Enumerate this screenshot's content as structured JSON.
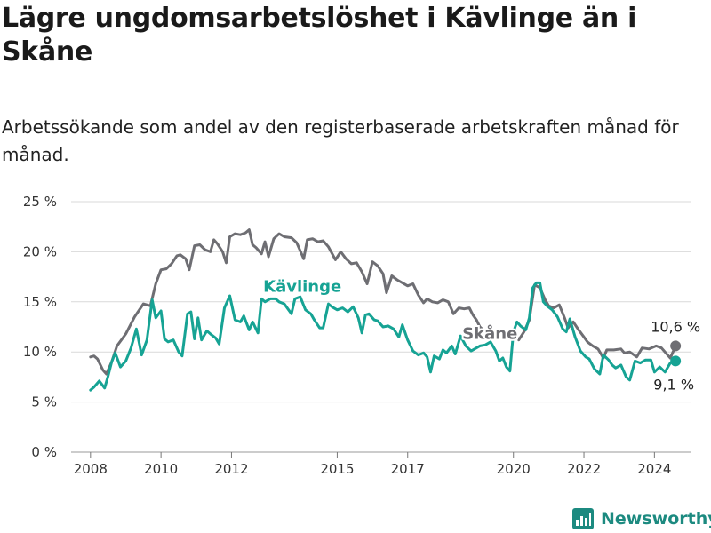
{
  "title": "Lägre ungdomsarbetslöshet i Kävlinge än i Skåne",
  "subtitle": "Arbetssökande som andel av den registerbaserade arbetskraften månad för månad.",
  "brand": "Newsworthy",
  "colors": {
    "kavlinge": "#16a394",
    "skane": "#6e6e73",
    "grid": "#d9d9d9",
    "axis": "#555555"
  },
  "chart_data": {
    "type": "line",
    "ylim": [
      0,
      25
    ],
    "y_ticks": [
      0,
      5,
      10,
      15,
      20,
      25
    ],
    "y_tick_labels": [
      "0 %",
      "5 %",
      "10 %",
      "15 %",
      "20 %",
      "25 %"
    ],
    "x_ticks": [
      2008,
      2010,
      2012,
      2015,
      2017,
      2020,
      2022,
      2024
    ],
    "x_tick_labels": [
      "2008",
      "2010",
      "2012",
      "2015",
      "2017",
      "2020",
      "2022",
      "2024"
    ],
    "series": [
      {
        "name": "Skåne",
        "color": "#6e6e73",
        "end_label": "10,6 %",
        "points": [
          [
            2008.0,
            9.5
          ],
          [
            2008.1,
            9.6
          ],
          [
            2008.2,
            9.3
          ],
          [
            2008.35,
            8.2
          ],
          [
            2008.45,
            7.8
          ],
          [
            2008.6,
            9.0
          ],
          [
            2008.75,
            10.6
          ],
          [
            2009.0,
            11.8
          ],
          [
            2009.25,
            13.5
          ],
          [
            2009.5,
            14.8
          ],
          [
            2009.7,
            14.6
          ],
          [
            2009.85,
            16.8
          ],
          [
            2010.0,
            18.2
          ],
          [
            2010.15,
            18.3
          ],
          [
            2010.3,
            18.8
          ],
          [
            2010.45,
            19.6
          ],
          [
            2010.55,
            19.7
          ],
          [
            2010.7,
            19.3
          ],
          [
            2010.8,
            18.2
          ],
          [
            2010.95,
            20.6
          ],
          [
            2011.1,
            20.7
          ],
          [
            2011.25,
            20.2
          ],
          [
            2011.4,
            20.0
          ],
          [
            2011.5,
            21.2
          ],
          [
            2011.6,
            20.8
          ],
          [
            2011.75,
            20.0
          ],
          [
            2011.85,
            18.9
          ],
          [
            2011.95,
            21.5
          ],
          [
            2012.1,
            21.8
          ],
          [
            2012.25,
            21.7
          ],
          [
            2012.4,
            21.9
          ],
          [
            2012.5,
            22.2
          ],
          [
            2012.6,
            20.7
          ],
          [
            2012.7,
            20.4
          ],
          [
            2012.85,
            19.8
          ],
          [
            2012.95,
            21.0
          ],
          [
            2013.05,
            19.5
          ],
          [
            2013.2,
            21.3
          ],
          [
            2013.35,
            21.8
          ],
          [
            2013.5,
            21.5
          ],
          [
            2013.7,
            21.4
          ],
          [
            2013.85,
            20.9
          ],
          [
            2014.05,
            19.3
          ],
          [
            2014.15,
            21.2
          ],
          [
            2014.3,
            21.3
          ],
          [
            2014.45,
            21.0
          ],
          [
            2014.6,
            21.1
          ],
          [
            2014.75,
            20.5
          ],
          [
            2014.95,
            19.2
          ],
          [
            2015.1,
            20.0
          ],
          [
            2015.25,
            19.3
          ],
          [
            2015.4,
            18.8
          ],
          [
            2015.55,
            18.9
          ],
          [
            2015.7,
            18.0
          ],
          [
            2015.85,
            16.8
          ],
          [
            2016.0,
            19.0
          ],
          [
            2016.15,
            18.6
          ],
          [
            2016.3,
            17.8
          ],
          [
            2016.4,
            15.9
          ],
          [
            2016.55,
            17.6
          ],
          [
            2016.7,
            17.2
          ],
          [
            2016.85,
            16.9
          ],
          [
            2017.0,
            16.6
          ],
          [
            2017.15,
            16.8
          ],
          [
            2017.3,
            15.7
          ],
          [
            2017.45,
            14.9
          ],
          [
            2017.55,
            15.3
          ],
          [
            2017.7,
            15.0
          ],
          [
            2017.85,
            14.9
          ],
          [
            2018.0,
            15.2
          ],
          [
            2018.15,
            15.0
          ],
          [
            2018.3,
            13.8
          ],
          [
            2018.45,
            14.4
          ],
          [
            2018.6,
            14.3
          ],
          [
            2018.75,
            14.4
          ],
          [
            2018.85,
            13.7
          ],
          [
            2018.95,
            13.2
          ],
          [
            2019.05,
            12.5
          ],
          [
            2019.2,
            12.0
          ],
          [
            2019.35,
            11.7
          ],
          [
            2019.5,
            11.4
          ],
          [
            2019.65,
            11.9
          ],
          [
            2019.8,
            11.6
          ],
          [
            2019.95,
            11.3
          ],
          [
            2020.05,
            11.7
          ],
          [
            2020.15,
            11.2
          ],
          [
            2020.3,
            12.0
          ],
          [
            2020.45,
            13.2
          ],
          [
            2020.6,
            16.7
          ],
          [
            2020.75,
            16.4
          ],
          [
            2020.9,
            15.2
          ],
          [
            2021.0,
            14.6
          ],
          [
            2021.15,
            14.4
          ],
          [
            2021.3,
            14.7
          ],
          [
            2021.45,
            13.4
          ],
          [
            2021.55,
            12.4
          ],
          [
            2021.7,
            13.0
          ],
          [
            2021.85,
            12.2
          ],
          [
            2022.0,
            11.5
          ],
          [
            2022.1,
            11.0
          ],
          [
            2022.25,
            10.6
          ],
          [
            2022.4,
            10.3
          ],
          [
            2022.55,
            9.4
          ],
          [
            2022.65,
            10.2
          ],
          [
            2022.85,
            10.2
          ],
          [
            2023.05,
            10.3
          ],
          [
            2023.15,
            9.9
          ],
          [
            2023.3,
            10.0
          ],
          [
            2023.5,
            9.5
          ],
          [
            2023.65,
            10.4
          ],
          [
            2023.85,
            10.3
          ],
          [
            2024.05,
            10.6
          ],
          [
            2024.2,
            10.4
          ],
          [
            2024.35,
            9.8
          ],
          [
            2024.45,
            9.4
          ],
          [
            2024.6,
            10.6
          ]
        ]
      },
      {
        "name": "Kävlinge",
        "color": "#16a394",
        "end_label": "9,1 %",
        "points": [
          [
            2008.0,
            6.2
          ],
          [
            2008.1,
            6.5
          ],
          [
            2008.25,
            7.1
          ],
          [
            2008.4,
            6.4
          ],
          [
            2008.5,
            7.6
          ],
          [
            2008.6,
            9.0
          ],
          [
            2008.7,
            9.9
          ],
          [
            2008.85,
            8.5
          ],
          [
            2009.0,
            9.1
          ],
          [
            2009.15,
            10.4
          ],
          [
            2009.3,
            12.3
          ],
          [
            2009.45,
            9.7
          ],
          [
            2009.6,
            11.2
          ],
          [
            2009.75,
            15.2
          ],
          [
            2009.85,
            13.4
          ],
          [
            2010.0,
            14.1
          ],
          [
            2010.1,
            11.3
          ],
          [
            2010.2,
            11.0
          ],
          [
            2010.35,
            11.2
          ],
          [
            2010.5,
            10.0
          ],
          [
            2010.6,
            9.6
          ],
          [
            2010.75,
            13.8
          ],
          [
            2010.85,
            14.0
          ],
          [
            2010.95,
            11.3
          ],
          [
            2011.05,
            13.4
          ],
          [
            2011.15,
            11.2
          ],
          [
            2011.3,
            12.1
          ],
          [
            2011.4,
            11.8
          ],
          [
            2011.55,
            11.4
          ],
          [
            2011.65,
            10.8
          ],
          [
            2011.8,
            14.4
          ],
          [
            2011.95,
            15.6
          ],
          [
            2012.1,
            13.2
          ],
          [
            2012.25,
            13.0
          ],
          [
            2012.35,
            13.6
          ],
          [
            2012.5,
            12.2
          ],
          [
            2012.6,
            13.0
          ],
          [
            2012.75,
            11.9
          ],
          [
            2012.85,
            15.3
          ],
          [
            2012.95,
            15.0
          ],
          [
            2013.1,
            15.3
          ],
          [
            2013.25,
            15.3
          ],
          [
            2013.35,
            15.0
          ],
          [
            2013.5,
            14.8
          ],
          [
            2013.6,
            14.3
          ],
          [
            2013.7,
            13.8
          ],
          [
            2013.8,
            15.3
          ],
          [
            2013.95,
            15.5
          ],
          [
            2014.1,
            14.2
          ],
          [
            2014.25,
            13.8
          ],
          [
            2014.35,
            13.2
          ],
          [
            2014.5,
            12.4
          ],
          [
            2014.6,
            12.4
          ],
          [
            2014.75,
            14.8
          ],
          [
            2014.85,
            14.5
          ],
          [
            2015.0,
            14.2
          ],
          [
            2015.15,
            14.4
          ],
          [
            2015.3,
            14.0
          ],
          [
            2015.45,
            14.5
          ],
          [
            2015.6,
            13.4
          ],
          [
            2015.7,
            11.9
          ],
          [
            2015.8,
            13.7
          ],
          [
            2015.9,
            13.8
          ],
          [
            2016.05,
            13.2
          ],
          [
            2016.15,
            13.1
          ],
          [
            2016.3,
            12.5
          ],
          [
            2016.45,
            12.6
          ],
          [
            2016.6,
            12.3
          ],
          [
            2016.75,
            11.5
          ],
          [
            2016.85,
            12.7
          ],
          [
            2017.0,
            11.2
          ],
          [
            2017.15,
            10.1
          ],
          [
            2017.3,
            9.7
          ],
          [
            2017.45,
            9.9
          ],
          [
            2017.55,
            9.5
          ],
          [
            2017.65,
            8.0
          ],
          [
            2017.75,
            9.6
          ],
          [
            2017.9,
            9.3
          ],
          [
            2018.0,
            10.2
          ],
          [
            2018.1,
            9.9
          ],
          [
            2018.25,
            10.6
          ],
          [
            2018.35,
            9.8
          ],
          [
            2018.5,
            11.6
          ],
          [
            2018.65,
            10.6
          ],
          [
            2018.8,
            10.1
          ],
          [
            2018.9,
            10.3
          ],
          [
            2019.05,
            10.6
          ],
          [
            2019.2,
            10.7
          ],
          [
            2019.35,
            11.0
          ],
          [
            2019.5,
            10.1
          ],
          [
            2019.6,
            9.1
          ],
          [
            2019.7,
            9.4
          ],
          [
            2019.8,
            8.5
          ],
          [
            2019.9,
            8.1
          ],
          [
            2020.0,
            12.0
          ],
          [
            2020.1,
            13.0
          ],
          [
            2020.2,
            12.6
          ],
          [
            2020.35,
            12.2
          ],
          [
            2020.45,
            13.4
          ],
          [
            2020.55,
            16.4
          ],
          [
            2020.65,
            16.9
          ],
          [
            2020.75,
            16.9
          ],
          [
            2020.85,
            15.0
          ],
          [
            2020.95,
            14.6
          ],
          [
            2021.1,
            14.2
          ],
          [
            2021.25,
            13.5
          ],
          [
            2021.4,
            12.3
          ],
          [
            2021.5,
            12.0
          ],
          [
            2021.6,
            13.3
          ],
          [
            2021.75,
            11.5
          ],
          [
            2021.9,
            10.1
          ],
          [
            2022.05,
            9.5
          ],
          [
            2022.15,
            9.3
          ],
          [
            2022.3,
            8.3
          ],
          [
            2022.45,
            7.8
          ],
          [
            2022.55,
            9.7
          ],
          [
            2022.7,
            9.2
          ],
          [
            2022.8,
            8.7
          ],
          [
            2022.9,
            8.4
          ],
          [
            2023.05,
            8.7
          ],
          [
            2023.2,
            7.5
          ],
          [
            2023.3,
            7.2
          ],
          [
            2023.45,
            9.1
          ],
          [
            2023.6,
            8.9
          ],
          [
            2023.75,
            9.2
          ],
          [
            2023.9,
            9.2
          ],
          [
            2024.0,
            8.0
          ],
          [
            2024.15,
            8.5
          ],
          [
            2024.3,
            8.0
          ],
          [
            2024.45,
            8.9
          ],
          [
            2024.6,
            9.1
          ]
        ]
      }
    ]
  }
}
